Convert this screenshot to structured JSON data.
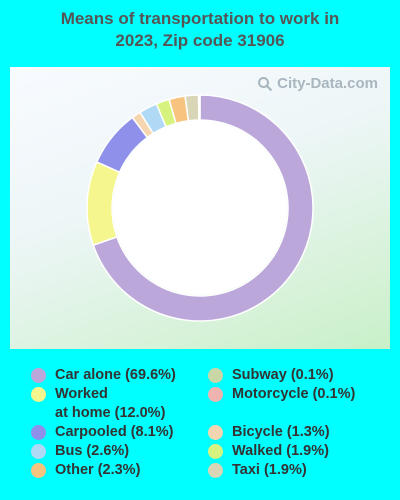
{
  "title_lines": [
    "Means of transportation to work in",
    "2023, Zip code 31906"
  ],
  "watermark": "City-Data.com",
  "chart_data": {
    "type": "pie",
    "title": "Means of transportation to work in 2023, Zip code 31906",
    "donut": true,
    "series": [
      {
        "label": "Car alone (69.6%)",
        "value": 69.6,
        "color": "#bba7da"
      },
      {
        "label": "Worked\nat home (12.0%)",
        "value": 12.0,
        "color": "#f6f68e"
      },
      {
        "label": "Carpooled (8.1%)",
        "value": 8.1,
        "color": "#8e90ea"
      },
      {
        "label": "Subway (0.1%)",
        "value": 0.1,
        "color": "#c9d7a6"
      },
      {
        "label": "Motorcycle (0.1%)",
        "value": 0.1,
        "color": "#efb3b0"
      },
      {
        "label": "Bicycle (1.3%)",
        "value": 1.3,
        "color": "#f6d6b1"
      },
      {
        "label": "Bus (2.6%)",
        "value": 2.6,
        "color": "#b0d9f5"
      },
      {
        "label": "Walked (1.9%)",
        "value": 1.9,
        "color": "#d7f37f"
      },
      {
        "label": "Other (2.3%)",
        "value": 2.3,
        "color": "#f7c47f"
      },
      {
        "label": "Taxi (1.9%)",
        "value": 1.9,
        "color": "#d8d6b6"
      }
    ],
    "legend_placement": "bottom"
  }
}
